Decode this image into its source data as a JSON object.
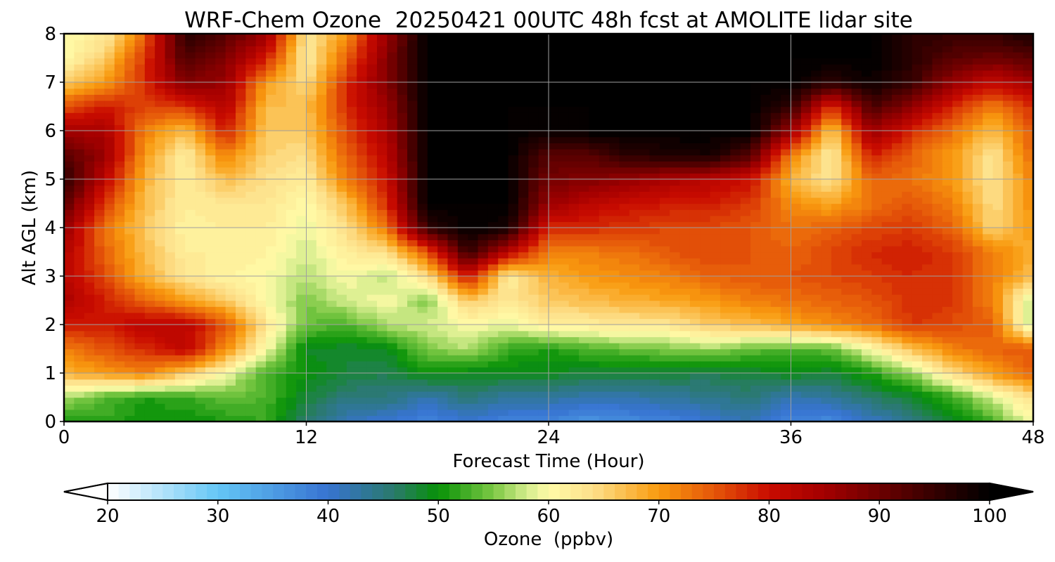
{
  "chart_data": {
    "type": "heatmap",
    "title": "WRF-Chem Ozone  20250421 00UTC 48h fcst at AMOLITE lidar site",
    "xlabel": "Forecast Time (Hour)",
    "ylabel": "Alt AGL (km)",
    "xlim": [
      0,
      48
    ],
    "ylim": [
      0,
      8
    ],
    "x_ticks": [
      0,
      12,
      24,
      36,
      48
    ],
    "y_ticks": [
      0,
      1,
      2,
      3,
      4,
      5,
      6,
      7,
      8
    ],
    "grid": true,
    "colorbar": {
      "label": "Ozone  (ppbv)",
      "min": 20,
      "max": 100,
      "step": 1,
      "extend": "both",
      "ticks": [
        20,
        30,
        40,
        50,
        60,
        70,
        80,
        90,
        100
      ],
      "stops": [
        {
          "value": 20,
          "color": "#ffffff"
        },
        {
          "value": 30,
          "color": "#64c6f6"
        },
        {
          "value": 40,
          "color": "#3773d1"
        },
        {
          "value": 46,
          "color": "#2a7a6a"
        },
        {
          "value": 50,
          "color": "#079107"
        },
        {
          "value": 55,
          "color": "#7cc844"
        },
        {
          "value": 58,
          "color": "#d3ec8c"
        },
        {
          "value": 60,
          "color": "#fffba8"
        },
        {
          "value": 64,
          "color": "#fde08a"
        },
        {
          "value": 70,
          "color": "#f99a0e"
        },
        {
          "value": 75,
          "color": "#e55609"
        },
        {
          "value": 80,
          "color": "#c90b00"
        },
        {
          "value": 85,
          "color": "#a30000"
        },
        {
          "value": 90,
          "color": "#6d0000"
        },
        {
          "value": 95,
          "color": "#340000"
        },
        {
          "value": 100,
          "color": "#000000"
        }
      ]
    },
    "field": {
      "x": [
        0,
        2,
        4,
        6,
        8,
        10,
        12,
        14,
        16,
        18,
        20,
        22,
        24,
        26,
        28,
        30,
        32,
        34,
        36,
        38,
        40,
        42,
        44,
        46,
        48
      ],
      "y": [
        0,
        0.5,
        1,
        1.5,
        2,
        2.5,
        3,
        3.5,
        4,
        4.5,
        5,
        5.5,
        6,
        6.5,
        7,
        7.5,
        8
      ],
      "units": "ppbv",
      "values": [
        [
          50,
          52,
          50,
          50,
          51,
          52,
          46,
          41,
          40,
          38,
          40,
          38,
          38,
          36,
          37,
          38,
          40,
          42,
          38,
          37,
          41,
          44,
          48,
          53,
          60
        ],
        [
          57,
          53,
          51,
          52,
          54,
          53,
          48,
          45,
          45,
          42,
          45,
          43,
          43,
          42,
          42,
          43,
          44,
          45,
          42,
          43,
          46,
          48,
          52,
          58,
          64
        ],
        [
          68,
          70,
          72,
          66,
          60,
          53,
          50,
          48,
          47,
          50,
          49,
          49,
          49,
          48,
          48,
          48,
          47,
          48,
          49,
          48,
          51,
          56,
          64,
          70,
          74
        ],
        [
          72,
          75,
          78,
          82,
          71,
          60,
          49,
          48,
          49,
          55,
          57,
          52,
          51,
          53,
          54,
          55,
          56,
          54,
          53,
          54,
          60,
          67,
          72,
          74,
          75
        ],
        [
          79,
          79,
          82,
          82,
          75,
          63,
          54,
          53,
          57,
          58,
          60,
          59,
          62,
          62,
          63,
          63,
          66,
          67,
          69,
          71,
          73,
          77,
          76,
          74,
          56
        ],
        [
          84,
          79,
          74,
          70,
          66,
          60,
          55,
          58,
          60,
          55,
          66,
          63,
          66,
          67,
          68,
          69,
          70,
          72,
          73,
          74,
          75,
          78,
          77,
          72,
          57
        ],
        [
          82,
          76,
          68,
          63,
          61,
          60,
          57,
          60,
          57,
          64,
          80,
          62,
          68,
          70,
          71,
          72,
          74,
          75,
          75,
          76,
          77,
          78,
          77,
          72,
          67
        ],
        [
          83,
          74,
          67,
          62,
          62,
          61,
          58,
          62,
          64,
          75,
          95,
          82,
          72,
          72,
          73,
          75,
          76,
          75,
          74,
          76,
          78,
          79,
          77,
          72,
          68
        ],
        [
          86,
          73,
          66,
          61,
          62,
          62,
          59,
          64,
          73,
          95,
          100,
          98,
          78,
          78,
          77,
          76,
          76,
          75,
          73,
          74,
          76,
          77,
          74,
          65,
          70
        ],
        [
          92,
          77,
          67,
          62,
          63,
          63,
          60,
          67,
          78,
          100,
          100,
          100,
          86,
          82,
          80,
          79,
          79,
          77,
          71,
          69,
          73,
          75,
          72,
          64,
          71
        ],
        [
          96,
          82,
          68,
          62,
          67,
          64,
          62,
          72,
          80,
          100,
          100,
          100,
          89,
          88,
          86,
          84,
          82,
          80,
          68,
          63,
          74,
          73,
          70,
          63,
          72
        ],
        [
          92,
          86,
          70,
          62,
          72,
          65,
          64,
          74,
          82,
          100,
          100,
          100,
          92,
          92,
          96,
          97,
          98,
          92,
          72,
          62,
          79,
          74,
          70,
          63,
          74
        ],
        [
          85,
          84,
          72,
          67,
          79,
          66,
          66,
          76,
          84,
          100,
          100,
          100,
          99,
          100,
          100,
          100,
          100,
          100,
          86,
          66,
          86,
          78,
          73,
          67,
          75
        ],
        [
          75,
          79,
          76,
          77,
          83,
          67,
          67,
          78,
          86,
          100,
          100,
          100,
          100,
          100,
          100,
          100,
          100,
          100,
          95,
          77,
          93,
          87,
          78,
          72,
          78
        ],
        [
          66,
          70,
          78,
          88,
          86,
          70,
          64,
          78,
          88,
          100,
          100,
          100,
          100,
          100,
          100,
          100,
          100,
          100,
          100,
          96,
          99,
          95,
          86,
          81,
          85
        ],
        [
          60,
          66,
          77,
          93,
          88,
          79,
          62,
          74,
          88,
          100,
          100,
          100,
          100,
          100,
          100,
          100,
          100,
          100,
          100,
          100,
          100,
          96,
          92,
          90,
          92
        ],
        [
          60,
          62,
          74,
          96,
          92,
          86,
          63,
          70,
          86,
          100,
          100,
          100,
          100,
          100,
          100,
          100,
          100,
          100,
          100,
          100,
          100,
          96,
          95,
          95,
          98
        ]
      ]
    }
  }
}
